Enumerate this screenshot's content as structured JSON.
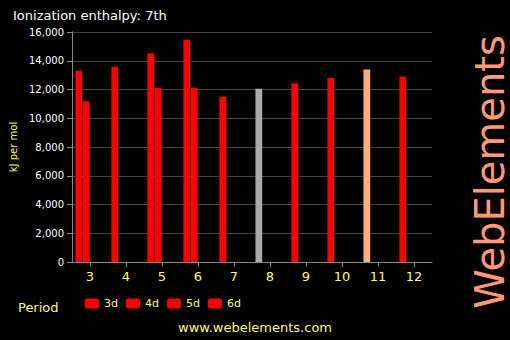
{
  "chart_data": {
    "type": "bar",
    "title": "Ionization enthalpy: 7th",
    "y_label": "kJ per mol",
    "legend_title": "Period",
    "watermark": "WebElements",
    "source": "www.webelements.com",
    "categories": [
      "3",
      "4",
      "5",
      "6",
      "7",
      "8",
      "9",
      "10",
      "11",
      "12"
    ],
    "series": [
      {
        "name": "3d",
        "color": "#ff0000",
        "colors": [
          "#ff0000",
          "#ff0000",
          "#ff0000",
          "#ff0000",
          "#ff0000",
          "#aaaaaa",
          "#ff0000",
          "#ff0000",
          "#ffb080",
          "#ff0000"
        ],
        "values": [
          13310,
          13590,
          14530,
          15455,
          11500,
          12060,
          12440,
          12800,
          13400,
          12900
        ]
      },
      {
        "name": "4d",
        "color": "#ff0000",
        "values": [
          11190,
          null,
          12100,
          12125,
          null,
          null,
          null,
          null,
          null,
          null
        ]
      },
      {
        "name": "5d",
        "color": "#ff0000",
        "values": [
          null,
          null,
          null,
          null,
          null,
          null,
          null,
          null,
          null,
          null
        ]
      },
      {
        "name": "6d",
        "color": "#ff0000",
        "values": [
          null,
          null,
          null,
          null,
          null,
          null,
          null,
          null,
          null,
          null
        ]
      }
    ],
    "ylim": [
      0,
      16000
    ],
    "yticks": [
      0,
      {
        "value": 2000,
        "label": "2,000"
      },
      {
        "value": 4000,
        "label": "4,000"
      },
      {
        "value": 6000,
        "label": "6,000"
      },
      {
        "value": 8000,
        "label": "8,000"
      },
      {
        "value": 10000,
        "label": "10,000"
      },
      {
        "value": 12000,
        "label": "12,000"
      },
      {
        "value": 14000,
        "label": "14,000"
      },
      {
        "value": 16000,
        "label": "16,000"
      }
    ],
    "grid": true,
    "legend": "bottom"
  }
}
